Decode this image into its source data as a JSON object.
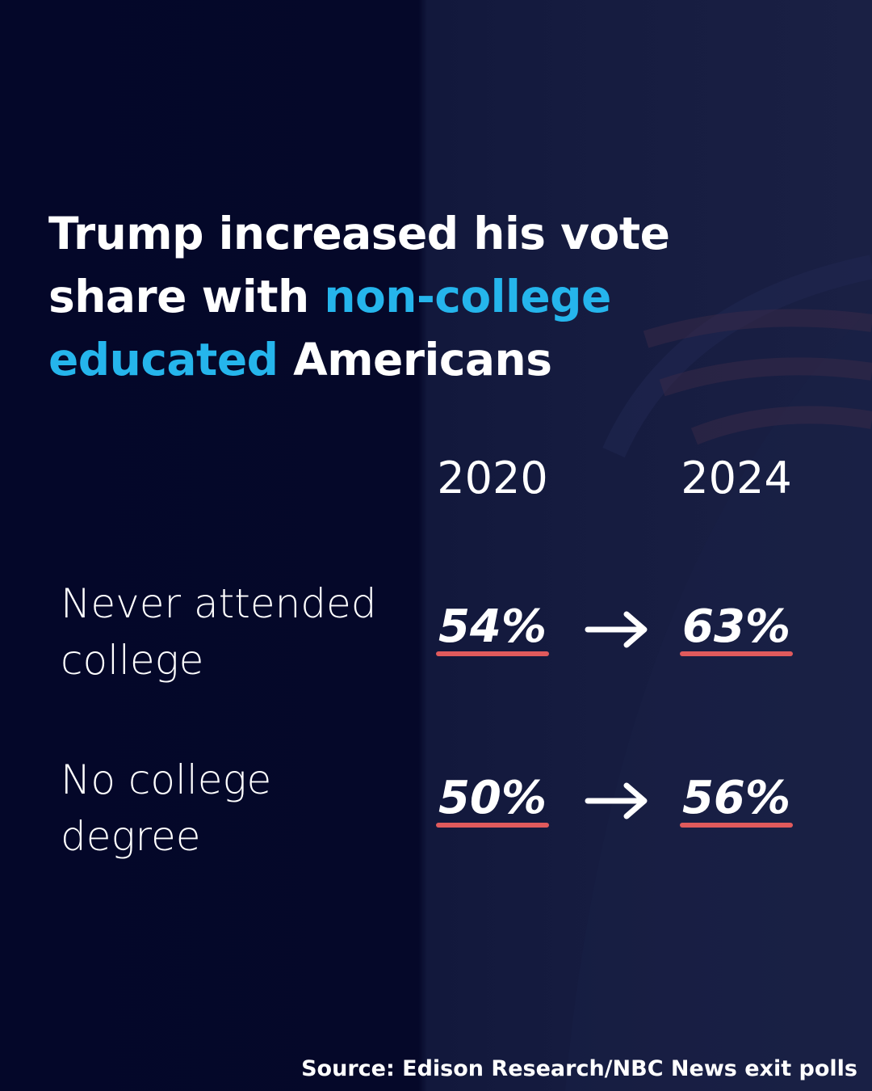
{
  "title": {
    "segments": [
      {
        "text": "Trump increased his vote share with ",
        "highlight": false
      },
      {
        "text": "non-college educated",
        "highlight": true
      },
      {
        "text": " Americans",
        "highlight": false
      }
    ]
  },
  "table": {
    "columns": [
      "2020",
      "2024"
    ],
    "rows": [
      {
        "label": [
          "Never attended",
          "college"
        ],
        "values": [
          "54%",
          "63%"
        ]
      },
      {
        "label": [
          "No college",
          "degree"
        ],
        "values": [
          "50%",
          "56%"
        ]
      }
    ]
  },
  "source": "Source: Edison Research/NBC News exit polls"
}
